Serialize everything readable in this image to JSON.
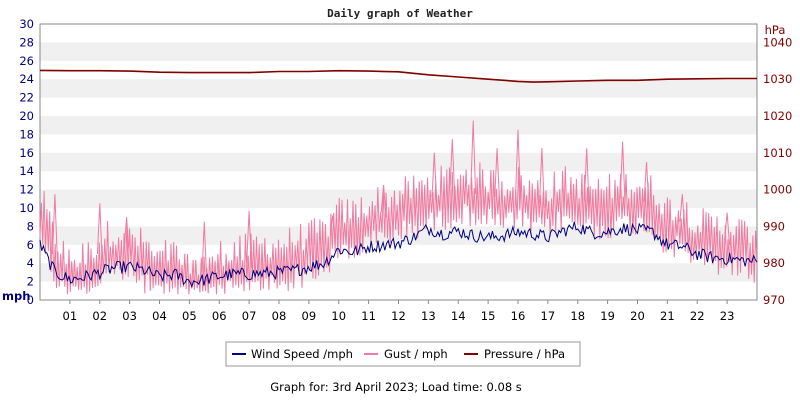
{
  "chart_data": {
    "type": "line",
    "title": "Daily graph of Weather",
    "left_axis": {
      "unit": "mph",
      "range": [
        0,
        30
      ],
      "ticks": [
        "0",
        "2",
        "4",
        "6",
        "8",
        "10",
        "12",
        "14",
        "16",
        "18",
        "20",
        "22",
        "24",
        "26",
        "28",
        "30"
      ]
    },
    "right_axis": {
      "unit": "hPa",
      "range": [
        970,
        1045
      ],
      "ticks": [
        "970",
        "980",
        "990",
        "1000",
        "1010",
        "1020",
        "1030",
        "1040"
      ]
    },
    "x_axis": {
      "range": [
        0,
        24
      ],
      "ticks": [
        "01",
        "02",
        "03",
        "04",
        "05",
        "06",
        "07",
        "08",
        "09",
        "10",
        "11",
        "12",
        "13",
        "14",
        "15",
        "16",
        "17",
        "18",
        "19",
        "20",
        "21",
        "22",
        "23"
      ]
    },
    "grid": "horizontal bands",
    "legend_position": "bottom",
    "series": [
      {
        "name": "Wind Speed /mph",
        "color": "#000080",
        "axis": "left",
        "x": [
          0,
          0.5,
          1,
          1.5,
          2,
          2.5,
          3,
          3.5,
          4,
          4.5,
          5,
          5.5,
          6,
          6.5,
          7,
          7.5,
          8,
          8.5,
          9,
          9.5,
          10,
          10.5,
          11,
          11.5,
          12,
          12.5,
          13,
          13.5,
          14,
          14.5,
          15,
          15.5,
          16,
          16.5,
          17,
          17.5,
          18,
          18.5,
          19,
          19.5,
          20,
          20.5,
          21,
          21.5,
          22,
          22.5,
          23,
          23.5,
          24
        ],
        "values": [
          6,
          3,
          2.2,
          2.5,
          3,
          3.5,
          3.6,
          3.2,
          2.5,
          2.8,
          2,
          2.2,
          2.6,
          2.8,
          2.8,
          2.9,
          3,
          3.2,
          3.6,
          4,
          5.5,
          5.2,
          5.8,
          6,
          6.2,
          6.8,
          7.8,
          7.2,
          7.5,
          7,
          6.8,
          7,
          7.4,
          7.2,
          6.8,
          7.5,
          8,
          7.3,
          7.4,
          7.8,
          7.6,
          7.4,
          6,
          5.8,
          5,
          4.6,
          4.5,
          4.3,
          4.2
        ]
      },
      {
        "name": "Gust / mph",
        "color": "#f07aa0",
        "axis": "left",
        "x": [
          0,
          0.5,
          1,
          1.5,
          2,
          2.5,
          3,
          3.5,
          4,
          4.5,
          5,
          5.5,
          6,
          6.5,
          7,
          7.5,
          8,
          8.5,
          9,
          9.5,
          10,
          10.5,
          11,
          11.5,
          12,
          12.5,
          13,
          13.5,
          14,
          14.5,
          15,
          15.5,
          16,
          16.5,
          17,
          17.5,
          18,
          18.5,
          19,
          19.5,
          20,
          20.5,
          21,
          21.5,
          22,
          22.5,
          23,
          23.5,
          24
        ],
        "values": [
          11,
          6,
          4,
          4,
          6,
          7,
          6.5,
          5.5,
          4.5,
          4.5,
          3,
          3.5,
          4.5,
          5,
          5,
          5.5,
          5.5,
          6,
          6.5,
          7,
          9,
          9,
          10,
          10.5,
          11,
          11.5,
          12,
          12.5,
          13,
          13,
          12.5,
          12,
          12.5,
          11.5,
          11.5,
          12.5,
          12,
          11.5,
          11.5,
          12,
          12,
          11.5,
          9.5,
          9.5,
          8,
          7.5,
          7.5,
          7,
          6.5
        ],
        "gust_peaks": [
          [
            0.5,
            11.5
          ],
          [
            2,
            10.5
          ],
          [
            2.9,
            9
          ],
          [
            5.5,
            8.5
          ],
          [
            7,
            9.7
          ],
          [
            9.8,
            9.2
          ],
          [
            11.5,
            12.5
          ],
          [
            13.2,
            16
          ],
          [
            13.8,
            17.5
          ],
          [
            14.5,
            19.5
          ],
          [
            15.3,
            16.5
          ],
          [
            16,
            18.5
          ],
          [
            16.8,
            16.5
          ],
          [
            18.3,
            16.5
          ],
          [
            19.5,
            17.2
          ],
          [
            20.3,
            15
          ],
          [
            21.5,
            11.5
          ],
          [
            23,
            9.5
          ]
        ]
      },
      {
        "name": "Pressure / hPa",
        "color": "#800000",
        "axis": "right",
        "x": [
          0,
          1,
          2,
          3,
          4,
          5,
          6,
          7,
          8,
          9,
          10,
          11,
          12,
          13,
          14,
          15,
          16,
          16.5,
          17,
          18,
          19,
          20,
          21,
          22,
          23,
          24
        ],
        "values": [
          1032.4,
          1032.3,
          1032.3,
          1032.2,
          1031.9,
          1031.8,
          1031.8,
          1031.8,
          1032.1,
          1032.1,
          1032.3,
          1032.2,
          1032,
          1031.2,
          1030.6,
          1030,
          1029.4,
          1029.2,
          1029.3,
          1029.5,
          1029.7,
          1029.7,
          1030,
          1030.1,
          1030.2,
          1030.2
        ]
      }
    ]
  },
  "footer": "Graph for: 3rd April 2023; Load time: 0.08 s"
}
